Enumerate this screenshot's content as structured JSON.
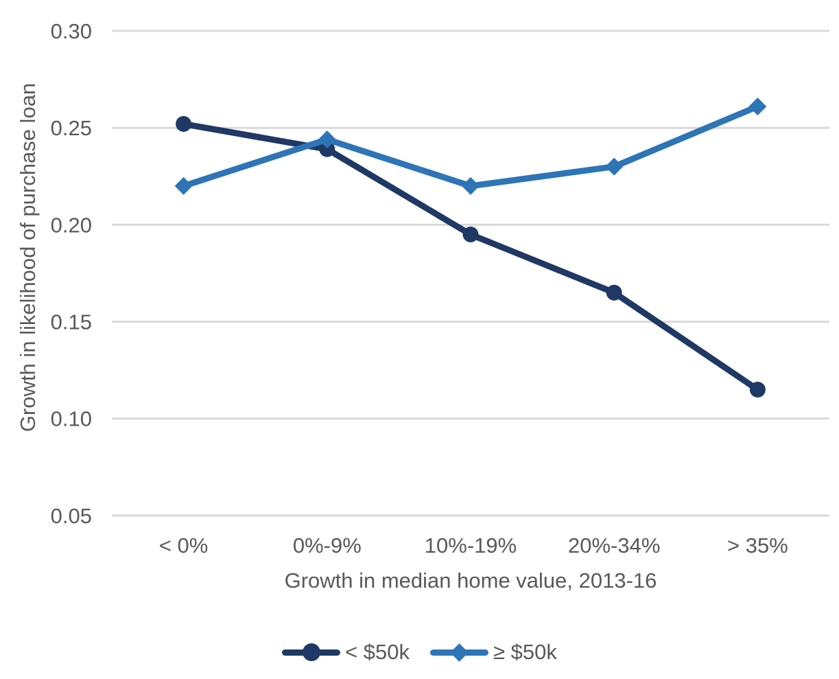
{
  "chart_data": {
    "type": "line",
    "title": "",
    "categories": [
      "< 0%",
      "0%-9%",
      "10%-19%",
      "20%-34%",
      "> 35%"
    ],
    "series": [
      {
        "name": "< $50k",
        "marker": "circle",
        "color": "#1F3864",
        "values": [
          0.252,
          0.239,
          0.195,
          0.165,
          0.115
        ]
      },
      {
        "name": "≥ $50k",
        "marker": "diamond",
        "color": "#2E75B6",
        "values": [
          0.22,
          0.244,
          0.22,
          0.23,
          0.261
        ]
      }
    ],
    "xlabel": "Growth in median home value, 2013-16",
    "ylabel": "Growth in likelihood of purchase loan",
    "ylim": [
      0.05,
      0.3
    ],
    "yticks": [
      0.05,
      0.1,
      0.15,
      0.2,
      0.25,
      0.3
    ],
    "ytick_labels": [
      "0.05",
      "0.10",
      "0.15",
      "0.20",
      "0.25",
      "0.30"
    ],
    "grid": true,
    "legend_position": "bottom"
  },
  "styles": {
    "text_color": "#595959",
    "grid_color": "#D9D9D9",
    "background": "#FFFFFF"
  }
}
